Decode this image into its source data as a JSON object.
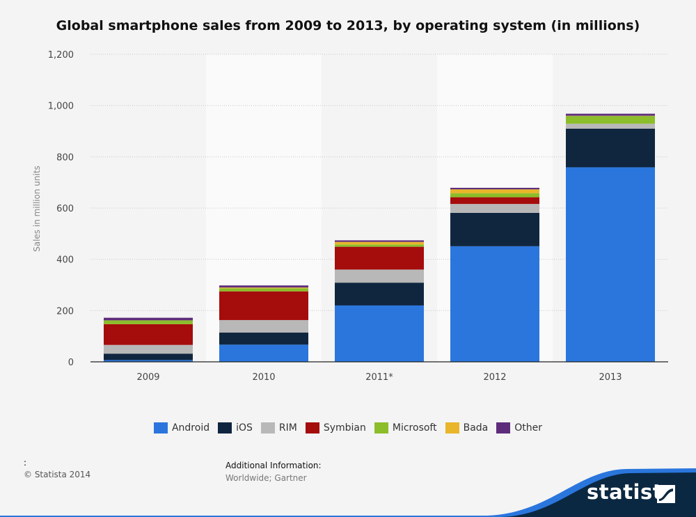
{
  "chart_data": {
    "type": "bar",
    "stacked": true,
    "title": "Global smartphone sales from 2009 to 2013, by operating system (in millions)",
    "xlabel": "",
    "ylabel": "Sales in million units",
    "ylim": [
      0,
      1200
    ],
    "yticks": [
      0,
      200,
      400,
      600,
      800,
      1000,
      1200
    ],
    "ytick_labels": [
      "0",
      "200",
      "400",
      "600",
      "800",
      "1,000",
      "1,200"
    ],
    "grid": true,
    "legend_position": "bottom",
    "categories": [
      "2009",
      "2010",
      "2011*",
      "2012",
      "2013"
    ],
    "series": [
      {
        "name": "Android",
        "color": "#2a76dd",
        "values": [
          7,
          67,
          220,
          451,
          759
        ]
      },
      {
        "name": "iOS",
        "color": "#10263f",
        "values": [
          25,
          47,
          89,
          130,
          151
        ]
      },
      {
        "name": "RIM",
        "color": "#b8b8b8",
        "values": [
          34,
          49,
          51,
          35,
          19
        ]
      },
      {
        "name": "Symbian",
        "color": "#a50c0c",
        "values": [
          81,
          112,
          89,
          26,
          0
        ]
      },
      {
        "name": "Microsoft",
        "color": "#8cbd2a",
        "values": [
          15,
          12,
          9,
          16,
          30
        ]
      },
      {
        "name": "Bada",
        "color": "#e9b52a",
        "values": [
          0,
          3,
          10,
          15,
          1
        ]
      },
      {
        "name": "Other",
        "color": "#5d2d7c",
        "values": [
          10,
          8,
          6,
          6,
          8
        ]
      }
    ]
  },
  "footer": {
    "colon": ":",
    "copyright": "© Statista 2014",
    "info_heading": "Additional Information:",
    "info_text": "Worldwide; Gartner"
  },
  "brand": {
    "name": "statista",
    "accent": "#2a76dd",
    "dark": "#0b2842"
  }
}
